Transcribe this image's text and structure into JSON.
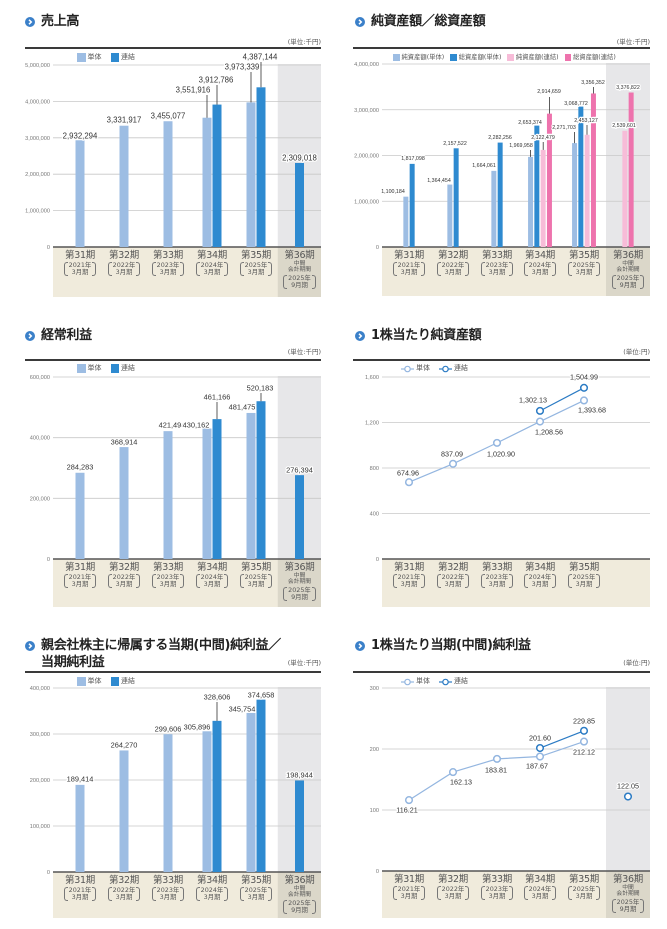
{
  "chart_data": [
    {
      "type": "bar",
      "title_lines": [
        "売上高"
      ],
      "unit": "(単位:千円)",
      "ylim": [
        0,
        5000000
      ],
      "yticks": [
        {
          "value": 0,
          "label": "0"
        },
        {
          "value": 1000000,
          "label": "1,000,000"
        },
        {
          "value": 2000000,
          "label": "2,000,000"
        },
        {
          "value": 3000000,
          "label": "3,000,000"
        },
        {
          "value": 4000000,
          "label": "4,000,000"
        },
        {
          "value": 5000000,
          "label": "5,000,000"
        }
      ],
      "grid": true,
      "legend_position": "top-left",
      "highlight_category": 5,
      "categories": [
        {
          "period": "第31期",
          "note": [],
          "sub": [
            "2021年",
            "3月期"
          ]
        },
        {
          "period": "第32期",
          "note": [],
          "sub": [
            "2022年",
            "3月期"
          ]
        },
        {
          "period": "第33期",
          "note": [],
          "sub": [
            "2023年",
            "3月期"
          ]
        },
        {
          "period": "第34期",
          "note": [],
          "sub": [
            "2024年",
            "3月期"
          ]
        },
        {
          "period": "第35期",
          "note": [],
          "sub": [
            "2025年",
            "3月期"
          ]
        },
        {
          "period": "第36期",
          "note": [
            "中間",
            "会計期間"
          ],
          "sub": [
            "2025年",
            "9月期"
          ]
        }
      ],
      "series": [
        {
          "name": "単体",
          "color": "#9dbde3",
          "values": [
            2932294,
            3331917,
            3455077,
            3551916,
            3973339,
            null
          ],
          "labels": [
            "2,932,294",
            "3,331,917",
            "3,455,077",
            "3,551,916",
            "3,973,339",
            null
          ]
        },
        {
          "name": "連結",
          "color": "#2e8ad0",
          "values": [
            null,
            null,
            null,
            3912786,
            4387144,
            2309018
          ],
          "labels": [
            null,
            null,
            null,
            "3,912,786",
            "4,387,144",
            "2,309,018"
          ]
        }
      ]
    },
    {
      "type": "bar",
      "title_lines": [
        "純資産額／総資産額"
      ],
      "unit": "(単位:千円)",
      "ylim": [
        0,
        4000000
      ],
      "yticks": [
        {
          "value": 0,
          "label": "0"
        },
        {
          "value": 1000000,
          "label": "1,000,000"
        },
        {
          "value": 2000000,
          "label": "2,000,000"
        },
        {
          "value": 3000000,
          "label": "3,000,000"
        },
        {
          "value": 4000000,
          "label": "4,000,000"
        }
      ],
      "grid": true,
      "legend_position": "top",
      "highlight_category": 5,
      "categories": [
        {
          "period": "第31期",
          "note": [],
          "sub": [
            "2021年",
            "3月期"
          ]
        },
        {
          "period": "第32期",
          "note": [],
          "sub": [
            "2022年",
            "3月期"
          ]
        },
        {
          "period": "第33期",
          "note": [],
          "sub": [
            "2023年",
            "3月期"
          ]
        },
        {
          "period": "第34期",
          "note": [],
          "sub": [
            "2024年",
            "3月期"
          ]
        },
        {
          "period": "第35期",
          "note": [],
          "sub": [
            "2025年",
            "3月期"
          ]
        },
        {
          "period": "第36期",
          "note": [
            "中間",
            "会計期間"
          ],
          "sub": [
            "2025年",
            "9月期"
          ]
        }
      ],
      "series": [
        {
          "name": "純資産額(単体)",
          "color": "#9dbde3",
          "values": [
            1100184,
            1364454,
            1664061,
            1969958,
            2271703,
            null
          ],
          "labels": [
            "1,100,184",
            "1,364,454",
            "1,664,061",
            "1,969,958",
            "2,271,703",
            null
          ]
        },
        {
          "name": "総資産額(単体)",
          "color": "#2e8ad0",
          "values": [
            1817098,
            2157522,
            2282256,
            2653374,
            3068772,
            null
          ],
          "labels": [
            "1,817,098",
            "2,157,522",
            "2,282,256",
            "2,653,374",
            "3,068,772",
            null
          ]
        },
        {
          "name": "純資産額(連結)",
          "color": "#f7bcd8",
          "values": [
            null,
            null,
            null,
            2122479,
            2453127,
            2539601
          ],
          "labels": [
            null,
            null,
            null,
            "2,122,479",
            "2,453,127",
            "2,539,601"
          ]
        },
        {
          "name": "総資産額(連結)",
          "color": "#ee73ad",
          "values": [
            null,
            null,
            null,
            2914659,
            3356352,
            3376822
          ],
          "labels": [
            null,
            null,
            null,
            "2,914,659",
            "3,356,352",
            "3,376,822"
          ]
        }
      ]
    },
    {
      "type": "bar",
      "title_lines": [
        "経常利益"
      ],
      "unit": "(単位:千円)",
      "ylim": [
        0,
        600000
      ],
      "yticks": [
        {
          "value": 0,
          "label": "0"
        },
        {
          "value": 200000,
          "label": "200,000"
        },
        {
          "value": 400000,
          "label": "400,000"
        },
        {
          "value": 600000,
          "label": "600,000"
        }
      ],
      "grid": true,
      "legend_position": "top-left",
      "highlight_category": 5,
      "categories": [
        {
          "period": "第31期",
          "note": [],
          "sub": [
            "2021年",
            "3月期"
          ]
        },
        {
          "period": "第32期",
          "note": [],
          "sub": [
            "2022年",
            "3月期"
          ]
        },
        {
          "period": "第33期",
          "note": [],
          "sub": [
            "2023年",
            "3月期"
          ]
        },
        {
          "period": "第34期",
          "note": [],
          "sub": [
            "2024年",
            "3月期"
          ]
        },
        {
          "period": "第35期",
          "note": [],
          "sub": [
            "2025年",
            "3月期"
          ]
        },
        {
          "period": "第36期",
          "note": [
            "中間",
            "会計期間"
          ],
          "sub": [
            "2025年",
            "9月期"
          ]
        }
      ],
      "series": [
        {
          "name": "単体",
          "color": "#9dbde3",
          "values": [
            284283,
            368914,
            421494,
            430162,
            481475,
            null
          ],
          "labels": [
            "284,283",
            "368,914",
            "421,494",
            "430,162",
            "481,475",
            null
          ]
        },
        {
          "name": "連結",
          "color": "#2e8ad0",
          "values": [
            null,
            null,
            null,
            461166,
            520183,
            276394
          ],
          "labels": [
            null,
            null,
            null,
            "461,166",
            "520,183",
            "276,394"
          ]
        }
      ]
    },
    {
      "type": "line",
      "title_lines": [
        "1株当たり純資産額"
      ],
      "unit": "(単位:円)",
      "ylim": [
        0,
        1600
      ],
      "yticks": [
        {
          "value": 0,
          "label": "0"
        },
        {
          "value": 400,
          "label": "400"
        },
        {
          "value": 800,
          "label": "800"
        },
        {
          "value": 1200,
          "label": "1,200"
        },
        {
          "value": 1600,
          "label": "1,600"
        }
      ],
      "grid": true,
      "legend_position": "top-left",
      "highlight_category": null,
      "categories": [
        {
          "period": "第31期",
          "note": [],
          "sub": [
            "2021年",
            "3月期"
          ]
        },
        {
          "period": "第32期",
          "note": [],
          "sub": [
            "2022年",
            "3月期"
          ]
        },
        {
          "period": "第33期",
          "note": [],
          "sub": [
            "2023年",
            "3月期"
          ]
        },
        {
          "period": "第34期",
          "note": [],
          "sub": [
            "2024年",
            "3月期"
          ]
        },
        {
          "period": "第35期",
          "note": [],
          "sub": [
            "2025年",
            "3月期"
          ]
        }
      ],
      "series": [
        {
          "name": "単体",
          "color": "#94b6e0",
          "values": [
            674.96,
            837.09,
            1020.9,
            1208.56,
            1393.68
          ],
          "labels": [
            "674.96",
            "837.09",
            "1,020.90",
            "1,208.56",
            "1,393.68"
          ]
        },
        {
          "name": "連結",
          "color": "#2b7bc4",
          "values": [
            null,
            null,
            null,
            1302.13,
            1504.99
          ],
          "labels": [
            null,
            null,
            null,
            "1,302.13",
            "1,504.99"
          ]
        }
      ]
    },
    {
      "type": "bar",
      "title_lines": [
        "親会社株主に帰属する当期(中間)純利益／",
        "当期純利益"
      ],
      "unit": "(単位:千円)",
      "ylim": [
        0,
        400000
      ],
      "yticks": [
        {
          "value": 0,
          "label": "0"
        },
        {
          "value": 100000,
          "label": "100,000"
        },
        {
          "value": 200000,
          "label": "200,000"
        },
        {
          "value": 300000,
          "label": "300,000"
        },
        {
          "value": 400000,
          "label": "400,000"
        }
      ],
      "grid": true,
      "legend_position": "top-left",
      "highlight_category": 5,
      "categories": [
        {
          "period": "第31期",
          "note": [],
          "sub": [
            "2021年",
            "3月期"
          ]
        },
        {
          "period": "第32期",
          "note": [],
          "sub": [
            "2022年",
            "3月期"
          ]
        },
        {
          "period": "第33期",
          "note": [],
          "sub": [
            "2023年",
            "3月期"
          ]
        },
        {
          "period": "第34期",
          "note": [],
          "sub": [
            "2024年",
            "3月期"
          ]
        },
        {
          "period": "第35期",
          "note": [],
          "sub": [
            "2025年",
            "3月期"
          ]
        },
        {
          "period": "第36期",
          "note": [
            "中間",
            "会計期間"
          ],
          "sub": [
            "2025年",
            "9月期"
          ]
        }
      ],
      "series": [
        {
          "name": "単体",
          "color": "#9dbde3",
          "values": [
            189414,
            264270,
            299606,
            305896,
            345754,
            null
          ],
          "labels": [
            "189,414",
            "264,270",
            "299,606",
            "305,896",
            "345,754",
            null
          ]
        },
        {
          "name": "連結",
          "color": "#2e8ad0",
          "values": [
            null,
            null,
            null,
            328606,
            374658,
            198944
          ],
          "labels": [
            null,
            null,
            null,
            "328,606",
            "374,658",
            "198,944"
          ]
        }
      ]
    },
    {
      "type": "line",
      "title_lines": [
        "1株当たり当期(中間)純利益"
      ],
      "unit": "(単位:円)",
      "ylim": [
        0,
        300
      ],
      "yticks": [
        {
          "value": 0,
          "label": "0"
        },
        {
          "value": 100,
          "label": "100"
        },
        {
          "value": 200,
          "label": "200"
        },
        {
          "value": 300,
          "label": "300"
        }
      ],
      "grid": true,
      "legend_position": "top-left",
      "highlight_category": 5,
      "categories": [
        {
          "period": "第31期",
          "note": [],
          "sub": [
            "2021年",
            "3月期"
          ]
        },
        {
          "period": "第32期",
          "note": [],
          "sub": [
            "2022年",
            "3月期"
          ]
        },
        {
          "period": "第33期",
          "note": [],
          "sub": [
            "2023年",
            "3月期"
          ]
        },
        {
          "period": "第34期",
          "note": [],
          "sub": [
            "2024年",
            "3月期"
          ]
        },
        {
          "period": "第35期",
          "note": [],
          "sub": [
            "2025年",
            "3月期"
          ]
        },
        {
          "period": "第36期",
          "note": [
            "中間",
            "会計期間"
          ],
          "sub": [
            "2025年",
            "9月期"
          ]
        }
      ],
      "series": [
        {
          "name": "単体",
          "color": "#94b6e0",
          "values": [
            116.21,
            162.13,
            183.81,
            187.67,
            212.12,
            null
          ],
          "labels": [
            "116.21",
            "162.13",
            "183.81",
            "187.67",
            "212.12",
            null
          ]
        },
        {
          "name": "連結",
          "color": "#2b7bc4",
          "values": [
            null,
            null,
            null,
            201.6,
            229.85,
            122.05
          ],
          "labels": [
            null,
            null,
            null,
            "201.60",
            "229.85",
            "122.05"
          ]
        }
      ]
    }
  ]
}
